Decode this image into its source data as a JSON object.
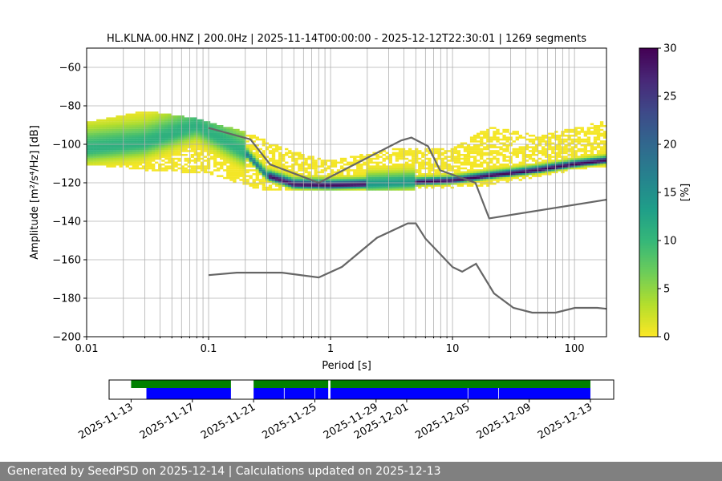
{
  "chart_data": {
    "type": "heatmap",
    "title": "HL.KLNA.00.HNZ | 200.0Hz | 2025-11-14T00:00:00 - 2025-12-12T22:30:01 | 1269 segments",
    "xlabel": "Period [s]",
    "ylabel": "Amplitude [m²/s⁴/Hz] [dB]",
    "xscale": "log",
    "xlim": [
      0.01,
      183
    ],
    "ylim": [
      -200,
      -50
    ],
    "xticks": [
      0.01,
      0.1,
      1,
      10,
      100
    ],
    "xtick_labels": [
      "0.01",
      "0.1",
      "1",
      "10",
      "100"
    ],
    "yticks": [
      -60,
      -80,
      -100,
      -120,
      -140,
      -160,
      -180,
      -200
    ],
    "ytick_labels": [
      "−60",
      "−80",
      "−100",
      "−120",
      "−140",
      "−160",
      "−180",
      "−200"
    ],
    "grid": true,
    "colormap": "viridis_r",
    "colorbar": {
      "label": "[%]",
      "range": [
        0,
        30
      ],
      "ticks": [
        0,
        5,
        10,
        15,
        20,
        25,
        30
      ],
      "tick_labels": [
        "0",
        "5",
        "10",
        "15",
        "20",
        "25",
        "30"
      ]
    },
    "probability_mode": [
      [
        0.01,
        -103
      ],
      [
        0.03,
        -100
      ],
      [
        0.08,
        -91
      ],
      [
        0.2,
        -105
      ],
      [
        0.3,
        -117
      ],
      [
        0.5,
        -121.5
      ],
      [
        1,
        -122
      ],
      [
        3,
        -121
      ],
      [
        10,
        -119.5
      ],
      [
        20,
        -117
      ],
      [
        50,
        -114
      ],
      [
        100,
        -111
      ],
      [
        183,
        -109
      ]
    ],
    "probability_upper_envelope": [
      [
        0.01,
        -90
      ],
      [
        0.03,
        -84
      ],
      [
        0.08,
        -88
      ],
      [
        0.2,
        -95
      ],
      [
        0.5,
        -105
      ],
      [
        1,
        -110
      ],
      [
        3,
        -104
      ],
      [
        10,
        -103
      ],
      [
        20,
        -92
      ],
      [
        50,
        -97
      ],
      [
        100,
        -93
      ],
      [
        183,
        -89
      ]
    ],
    "probability_lower_envelope": [
      [
        0.01,
        -110
      ],
      [
        0.03,
        -113
      ],
      [
        0.1,
        -115
      ],
      [
        0.3,
        -124
      ],
      [
        1,
        -124
      ],
      [
        3,
        -124
      ],
      [
        10,
        -122
      ],
      [
        20,
        -121
      ],
      [
        100,
        -113
      ],
      [
        183,
        -111
      ]
    ],
    "noise_models": [
      {
        "points": [
          [
            0.1,
            -91.5
          ],
          [
            0.22,
            -97.4
          ],
          [
            0.32,
            -110.5
          ],
          [
            0.8,
            -120
          ],
          [
            3.8,
            -98
          ],
          [
            4.6,
            -96.5
          ],
          [
            6.3,
            -101
          ],
          [
            7.9,
            -113.5
          ],
          [
            15.4,
            -120
          ],
          [
            20,
            -138.5
          ],
          [
            183,
            -128.8
          ]
        ],
        "color": "#666666"
      },
      {
        "points": [
          [
            0.1,
            -168
          ],
          [
            0.17,
            -166.7
          ],
          [
            0.4,
            -166.7
          ],
          [
            0.8,
            -169.2
          ],
          [
            1.24,
            -163.7
          ],
          [
            2.4,
            -148.6
          ],
          [
            4.3,
            -141.1
          ],
          [
            5,
            -141.1
          ],
          [
            6,
            -149
          ],
          [
            10,
            -163.8
          ],
          [
            12,
            -166.2
          ],
          [
            15.6,
            -162.1
          ],
          [
            21.9,
            -177.5
          ],
          [
            31.6,
            -185
          ],
          [
            45,
            -187.5
          ],
          [
            70,
            -187.5
          ],
          [
            101,
            -185
          ],
          [
            154,
            -185
          ],
          [
            183,
            -185.5
          ]
        ],
        "color": "#666666"
      }
    ],
    "timeline": {
      "xlim": [
        "2025-11-11T13:30",
        "2025-12-14T12:30"
      ],
      "ticks": [
        "2025-11-13",
        "2025-11-17",
        "2025-11-21",
        "2025-11-25",
        "2025-11-29",
        "2025-12-01",
        "2025-12-05",
        "2025-12-09",
        "2025-12-13"
      ],
      "data_available": {
        "color": "#008000",
        "intervals": [
          [
            "2025-11-13T00:00",
            "2025-11-19T12:30"
          ],
          [
            "2025-11-21T00:00",
            "2025-11-25T21:00"
          ],
          [
            "2025-11-26T00:30",
            "2025-12-13T00:00"
          ]
        ]
      },
      "psd_segments": {
        "color": "#0000ff",
        "intervals": [
          [
            "2025-11-14T00:00",
            "2025-11-19T12:30"
          ],
          [
            "2025-11-21T00:00",
            "2025-11-22T23:30"
          ],
          [
            "2025-11-23T00:30",
            "2025-11-24T23:30"
          ],
          [
            "2025-11-25T00:30",
            "2025-11-25T21:00"
          ],
          [
            "2025-11-26T00:30",
            "2025-12-04T23:30"
          ],
          [
            "2025-12-05T00:30",
            "2025-12-06T23:30"
          ],
          [
            "2025-12-07T00:30",
            "2025-12-13T00:00"
          ]
        ]
      }
    }
  },
  "footer": {
    "text": "Generated by SeedPSD on 2025-12-14 | Calculations updated on 2025-12-13"
  }
}
